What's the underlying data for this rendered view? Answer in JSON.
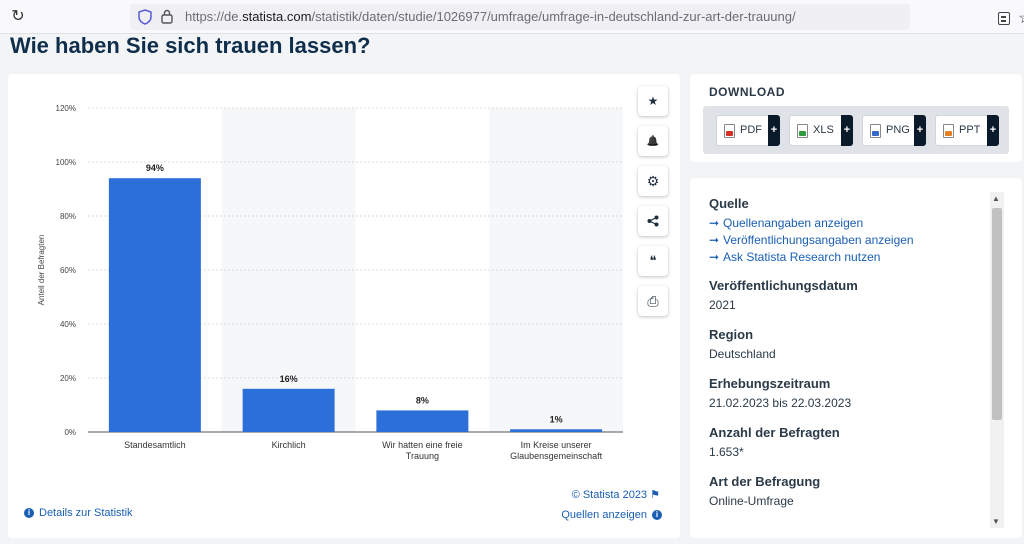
{
  "browser": {
    "url_prefix": "https://de.",
    "url_host": "statista.com",
    "url_path": "/statistik/daten/studie/1026977/umfrage/umfrage-in-deutschland-zur-art-der-trauung/"
  },
  "page": {
    "title": "Wie haben Sie sich trauen lassen?"
  },
  "chart_data": {
    "type": "bar",
    "categories": [
      "Standesamtlich",
      "Kirchlich",
      "Wir hatten eine freie Trauung",
      "Im Kreise unserer Glaubensgemeinschaft"
    ],
    "category_lines": [
      [
        "Standesamtlich"
      ],
      [
        "Kirchlich"
      ],
      [
        "Wir hatten eine freie",
        "Trauung"
      ],
      [
        "Im Kreise unserer",
        "Glaubensgemeinschaft"
      ]
    ],
    "values": [
      94,
      16,
      8,
      1
    ],
    "value_labels": [
      "94%",
      "16%",
      "8%",
      "1%"
    ],
    "ylabel": "Anteil der Befragten",
    "ylim": [
      0,
      120
    ],
    "yticks": [
      0,
      20,
      40,
      60,
      80,
      100,
      120
    ],
    "ytick_labels": [
      "0%",
      "20%",
      "40%",
      "60%",
      "80%",
      "100%",
      "120%"
    ],
    "grid": true,
    "bar_color": "#2c6fd8"
  },
  "chart_footer": {
    "copyright": "© Statista 2023",
    "details": "Details zur Statistik",
    "sources": "Quellen anzeigen"
  },
  "toolbar": {
    "favorite_icon": "★",
    "notify_icon": "🔔",
    "settings_icon": "⚙",
    "share_icon": "<",
    "cite_icon": "❝",
    "print_icon": "⎙"
  },
  "download": {
    "title": "DOWNLOAD",
    "buttons": [
      {
        "label": "PDF",
        "plus": "+"
      },
      {
        "label": "XLS",
        "plus": "+"
      },
      {
        "label": "PNG",
        "plus": "+"
      },
      {
        "label": "PPT",
        "plus": "+"
      }
    ]
  },
  "info": {
    "source_heading": "Quelle",
    "links": [
      "Quellenangaben anzeigen",
      "Veröffentlichungsangaben anzeigen",
      "Ask Statista Research nutzen"
    ],
    "arrow": "➞",
    "items": [
      {
        "heading": "Veröffentlichungsdatum",
        "value": "2021"
      },
      {
        "heading": "Region",
        "value": "Deutschland"
      },
      {
        "heading": "Erhebungszeitraum",
        "value": "21.02.2023 bis 22.03.2023"
      },
      {
        "heading": "Anzahl der Befragten",
        "value": "1.653*"
      },
      {
        "heading": "Art der Befragung",
        "value": "Online-Umfrage"
      }
    ]
  }
}
